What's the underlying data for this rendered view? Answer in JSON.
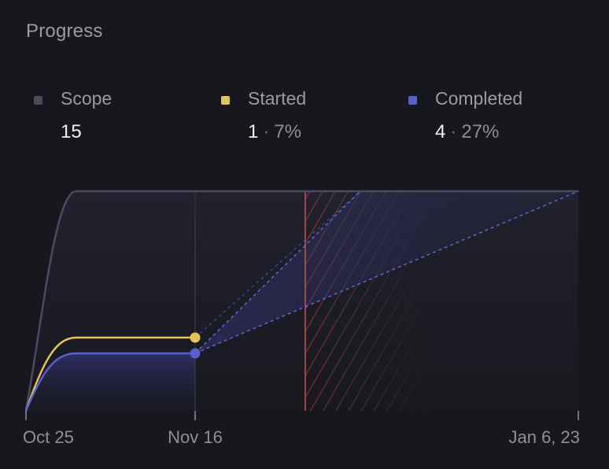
{
  "title": "Progress",
  "colors": {
    "scope": "#4a4a62",
    "started": "#e6c25a",
    "completed": "#5a5fd0",
    "target": "#d05050",
    "background": "#17181d"
  },
  "legend": [
    {
      "key": "scope",
      "label": "Scope",
      "count": "15",
      "percent": ""
    },
    {
      "key": "started",
      "label": "Started",
      "count": "1",
      "percent": "7%"
    },
    {
      "key": "completed",
      "label": "Completed",
      "count": "4",
      "percent": "27%"
    }
  ],
  "chart_data": {
    "type": "line",
    "title": "Progress",
    "x_ticks": [
      "Oct 25",
      "Nov 16",
      "Jan 6, 23"
    ],
    "today": "Nov 16",
    "target_date_marker": "red vertical line with hatched region",
    "ylim": [
      0,
      15
    ],
    "series": [
      {
        "name": "Scope",
        "points": [
          [
            "Oct 25",
            0
          ],
          [
            "Oct 31",
            15
          ],
          [
            "Jan 6, 23",
            15
          ]
        ]
      },
      {
        "name": "Started",
        "points": [
          [
            "Oct 25",
            0
          ],
          [
            "Oct 31",
            5
          ],
          [
            "Nov 16",
            5
          ]
        ]
      },
      {
        "name": "Completed",
        "points": [
          [
            "Oct 25",
            0
          ],
          [
            "Oct 31",
            4
          ],
          [
            "Nov 16",
            4
          ]
        ]
      }
    ],
    "projections": [
      {
        "from": [
          "Nov 16",
          4
        ],
        "to_value": 15,
        "style": "dashed"
      },
      {
        "from": [
          "Nov 16",
          5
        ],
        "to_value": 15,
        "style": "dashed"
      }
    ]
  }
}
